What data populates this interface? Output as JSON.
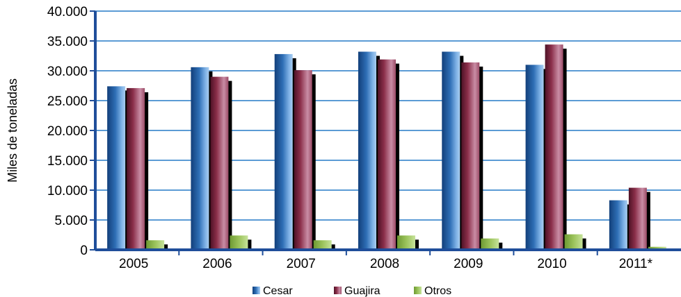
{
  "chart_data": {
    "type": "bar",
    "title": "",
    "xlabel": "",
    "ylabel": "Miles de toneladas",
    "ylim": [
      0,
      40000
    ],
    "yticks": [
      {
        "value": 0,
        "label": "0"
      },
      {
        "value": 5000,
        "label": "5.000"
      },
      {
        "value": 10000,
        "label": "10.000"
      },
      {
        "value": 15000,
        "label": "15.000"
      },
      {
        "value": 20000,
        "label": "20.000"
      },
      {
        "value": 25000,
        "label": "25.000"
      },
      {
        "value": 30000,
        "label": "30.000"
      },
      {
        "value": 35000,
        "label": "35.000"
      },
      {
        "value": 40000,
        "label": "40.000"
      }
    ],
    "categories": [
      "2005",
      "2006",
      "2007",
      "2008",
      "2009",
      "2010",
      "2011*"
    ],
    "series": [
      {
        "name": "Cesar",
        "color": "#2E6EB5",
        "values": [
          27400,
          30600,
          32800,
          33200,
          33200,
          31000,
          8300
        ]
      },
      {
        "name": "Guajira",
        "color": "#8B2F4A",
        "values": [
          27100,
          29000,
          30100,
          31900,
          31400,
          34400,
          10400
        ]
      },
      {
        "name": "Otros",
        "color": "#9BC35B",
        "values": [
          1600,
          2400,
          1600,
          2400,
          1900,
          2600,
          500
        ]
      }
    ],
    "grid": true,
    "legend_position": "bottom"
  }
}
